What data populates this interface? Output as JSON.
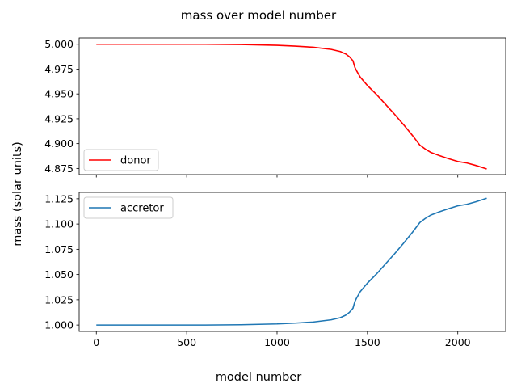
{
  "chart_data": {
    "type": "line",
    "title": "mass over model number",
    "xlabel": "model number",
    "ylabel": "mass (solar units)",
    "xlim": [
      -95,
      2265
    ],
    "x_ticks": [
      0,
      500,
      1000,
      1500,
      2000
    ],
    "x_tick_labels": [
      "0",
      "500",
      "1000",
      "1500",
      "2000"
    ],
    "shared_x": true,
    "panels": [
      {
        "legend_position": "lower-left",
        "ylim": [
          4.8688,
          5.0063
        ],
        "y_ticks": [
          4.875,
          4.9,
          4.925,
          4.95,
          4.975,
          5.0
        ],
        "y_tick_labels": [
          "4.875",
          "4.900",
          "4.925",
          "4.950",
          "4.975",
          "5.000"
        ],
        "series": [
          {
            "name": "donor",
            "color": "#ff0000",
            "x": [
              0,
              200,
              400,
              600,
              800,
              1000,
              1100,
              1200,
              1300,
              1350,
              1380,
              1400,
              1420,
              1430,
              1440,
              1460,
              1500,
              1550,
              1600,
              1650,
              1700,
              1750,
              1790,
              1820,
              1850,
              1900,
              1950,
              2000,
              2050,
              2100,
              2160
            ],
            "values": [
              5.0,
              5.0,
              5.0,
              5.0,
              4.9997,
              4.9989,
              4.9981,
              4.997,
              4.9948,
              4.9927,
              4.9902,
              4.9875,
              4.9834,
              4.977,
              4.9733,
              4.967,
              4.9585,
              4.9495,
              4.9395,
              4.9295,
              4.919,
              4.908,
              4.8985,
              4.8945,
              4.8912,
              4.8878,
              4.8848,
              4.882,
              4.8805,
              4.878,
              4.8745
            ]
          }
        ]
      },
      {
        "legend_position": "upper-left",
        "ylim": [
          0.9937,
          1.1313
        ],
        "y_ticks": [
          1.0,
          1.025,
          1.05,
          1.075,
          1.1,
          1.125
        ],
        "y_tick_labels": [
          "1.000",
          "1.025",
          "1.050",
          "1.075",
          "1.100",
          "1.125"
        ],
        "series": [
          {
            "name": "accretor",
            "color": "#1f77b4",
            "x": [
              0,
              200,
              400,
              600,
              800,
              1000,
              1100,
              1200,
              1300,
              1350,
              1380,
              1400,
              1420,
              1430,
              1440,
              1460,
              1500,
              1550,
              1600,
              1650,
              1700,
              1750,
              1790,
              1820,
              1850,
              1900,
              1950,
              2000,
              2050,
              2100,
              2160
            ],
            "values": [
              1.0,
              1.0,
              1.0,
              1.0,
              1.0003,
              1.0011,
              1.0019,
              1.003,
              1.0052,
              1.0073,
              1.0098,
              1.0125,
              1.0166,
              1.023,
              1.0267,
              1.033,
              1.0415,
              1.0505,
              1.0605,
              1.0705,
              1.081,
              1.092,
              1.1015,
              1.1055,
              1.1088,
              1.1122,
              1.1152,
              1.118,
              1.1195,
              1.122,
              1.1255
            ]
          }
        ]
      }
    ]
  }
}
